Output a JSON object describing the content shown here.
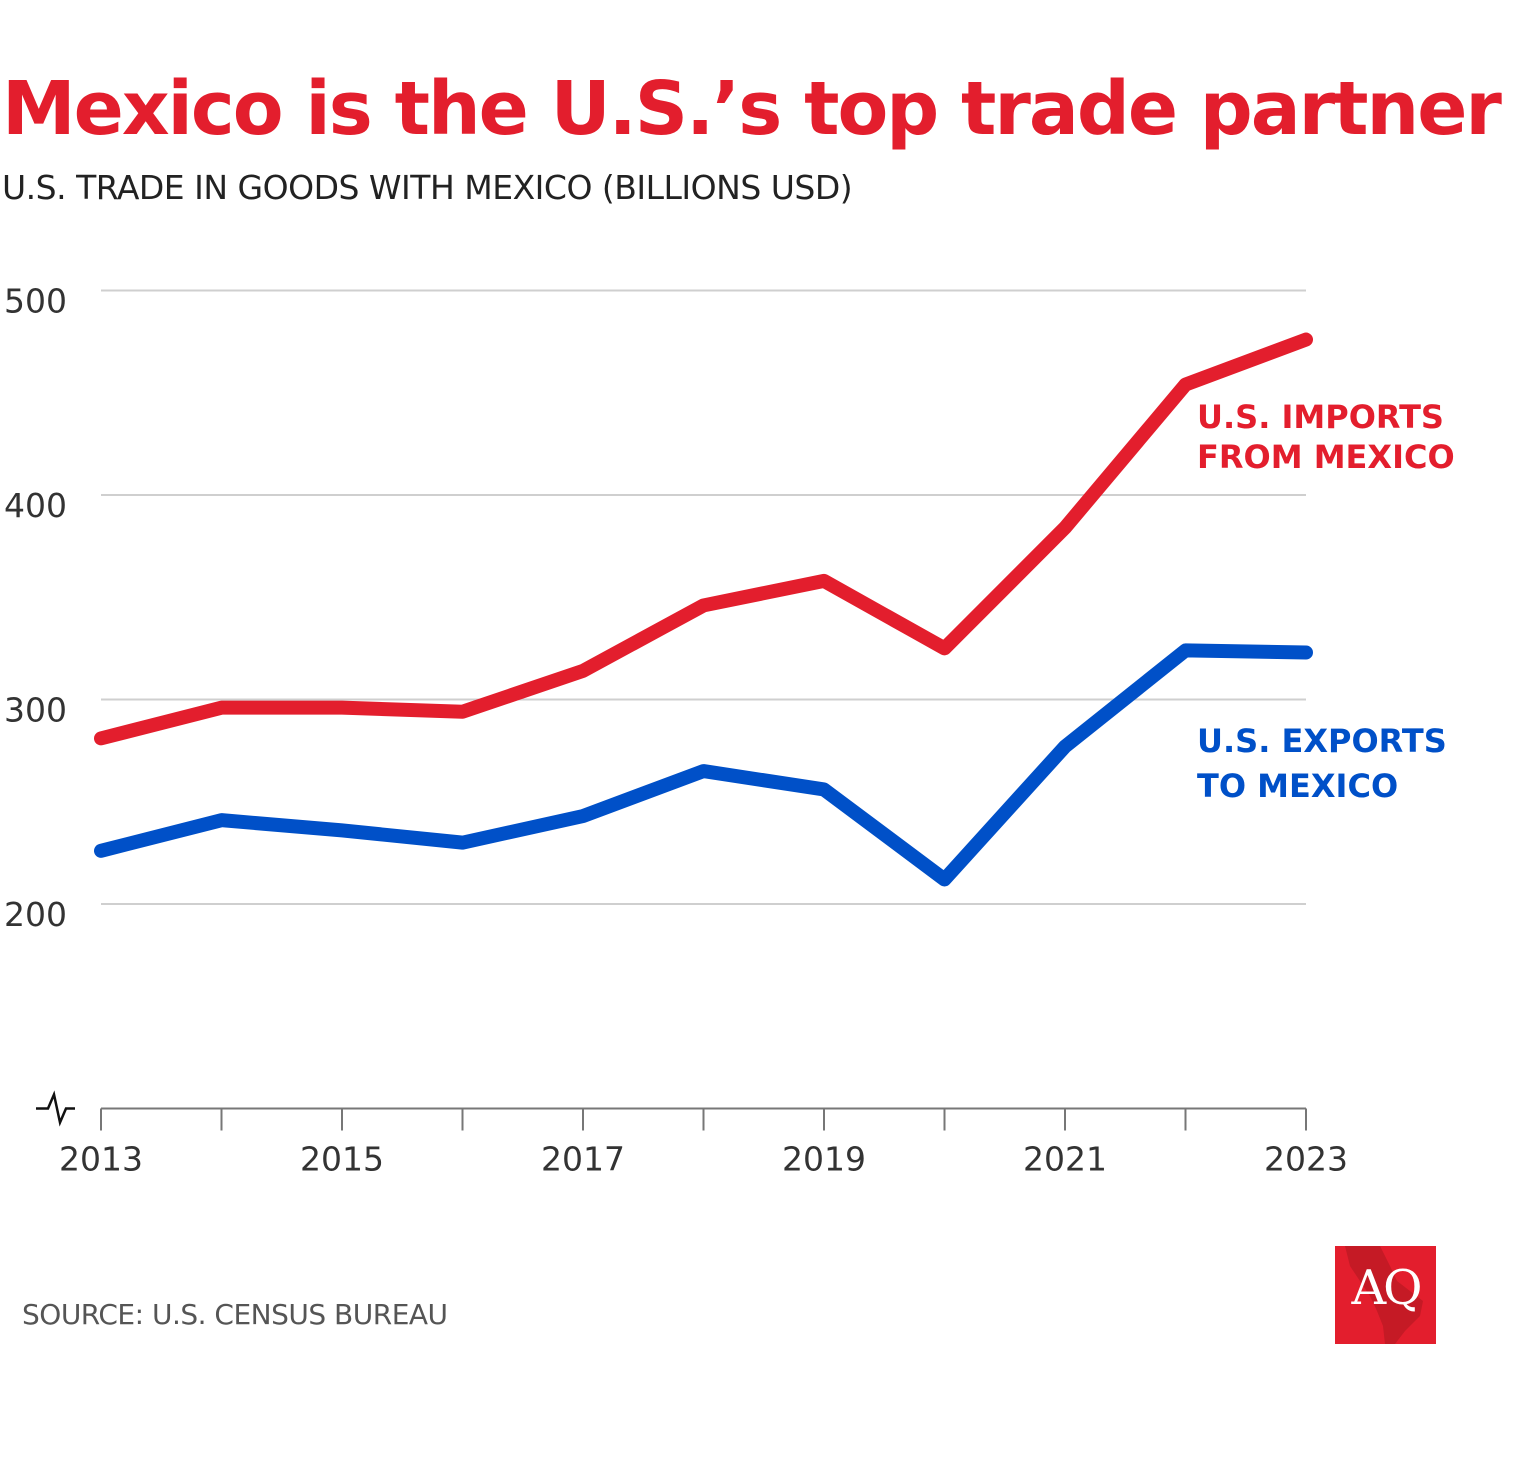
{
  "chart_data": {
    "type": "line",
    "title": "Mexico is the U.S.’s top trade partner",
    "subtitle": "U.S. TRADE IN GOODS WITH MEXICO (BILLIONS USD)",
    "x": [
      2013,
      2014,
      2015,
      2016,
      2017,
      2018,
      2019,
      2020,
      2021,
      2022,
      2023
    ],
    "x_tick_labels": [
      "2013",
      "2015",
      "2017",
      "2019",
      "2021",
      "2023"
    ],
    "y_tick_labels": [
      "200",
      "300",
      "400",
      "500"
    ],
    "ylim": [
      100,
      500
    ],
    "y_axis_break": true,
    "grid": true,
    "series": [
      {
        "name": "U.S. IMPORTS FROM MEXICO",
        "label_lines": [
          "U.S. IMPORTS",
          "FROM MEXICO"
        ],
        "color": "#e31e2d",
        "values": [
          281,
          296,
          296,
          294,
          314,
          346,
          358,
          325,
          384,
          454,
          476
        ]
      },
      {
        "name": "U.S. EXPORTS TO MEXICO",
        "label_lines": [
          "U.S. EXPORTS",
          "TO MEXICO"
        ],
        "color": "#0050c8",
        "values": [
          226,
          241,
          236,
          230,
          243,
          265,
          256,
          212,
          277,
          324,
          323
        ]
      }
    ],
    "source": "SOURCE: U.S. CENSUS BUREAU"
  },
  "logo": {
    "text": "AQ",
    "color": "#e31e2d"
  }
}
